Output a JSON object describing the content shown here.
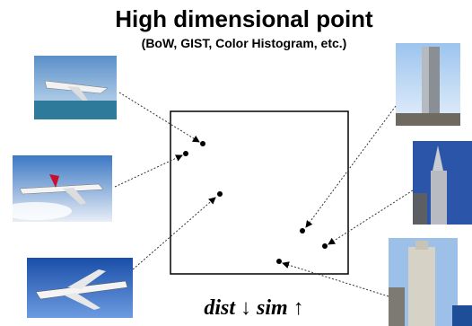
{
  "header": {
    "title": "High dimensional point",
    "subtitle": "(BoW, GIST, Color Histogram, etc.)"
  },
  "footer": {
    "formula": "dist ↓ sim ↑"
  }
}
